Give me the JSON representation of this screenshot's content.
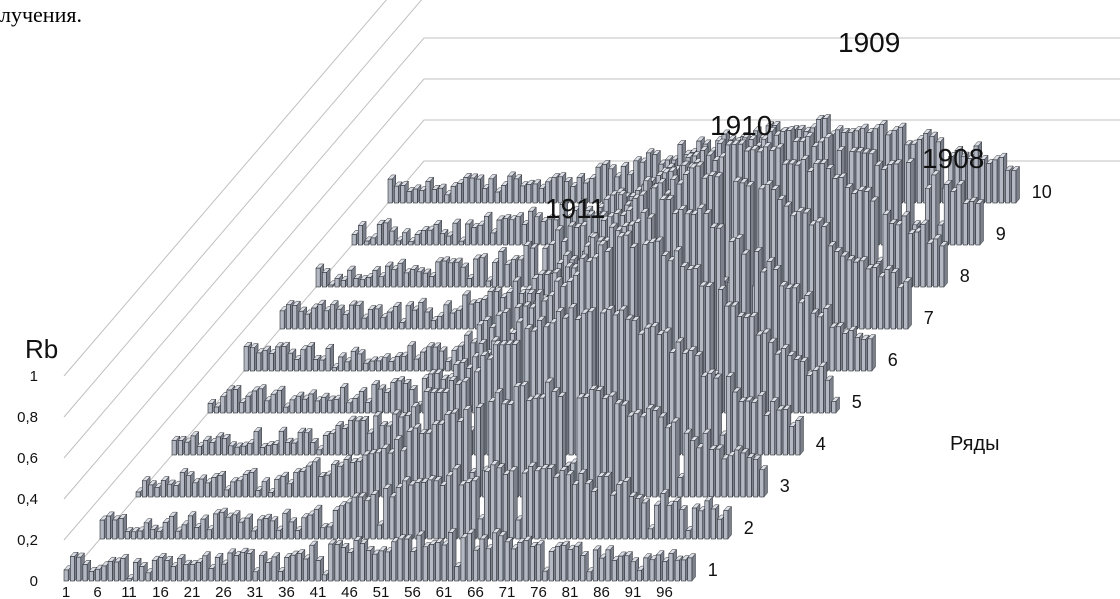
{
  "caption_fragment": "лучения.",
  "chart_data": {
    "type": "bar",
    "subtype": "3d-bar",
    "ylabel": "Rb",
    "depth_label": "Ряды",
    "ylim": [
      0,
      1
    ],
    "y_ticks": [
      "0",
      "0,2",
      "0,4",
      "0,6",
      "0,8",
      "1"
    ],
    "x_ticks": [
      "1",
      "6",
      "11",
      "16",
      "21",
      "26",
      "31",
      "36",
      "41",
      "46",
      "51",
      "56",
      "61",
      "66",
      "71",
      "76",
      "81",
      "86",
      "91",
      "96"
    ],
    "x_count": 100,
    "rows": [
      "1",
      "2",
      "3",
      "4",
      "5",
      "6",
      "7",
      "8",
      "9",
      "10"
    ],
    "annotations": [
      {
        "text": "1909",
        "row": 10,
        "x": 43
      },
      {
        "text": "1910",
        "row": 10,
        "x": 26
      },
      {
        "text": "1908",
        "row": 10,
        "x": 53
      },
      {
        "text": "1911",
        "row": 10,
        "x": 5
      }
    ],
    "grid": true,
    "colors": {
      "bar_front": "#b3b8c2",
      "bar_side": "#7b808b",
      "bar_top": "#dcdfe5",
      "bar_edge": "#2a2d33",
      "grid": "#c0c0c0"
    },
    "series_profiles": [
      {
        "name": "1",
        "peak_x": 65,
        "peak_value": 0.12,
        "width": 30
      },
      {
        "name": "2",
        "peak_x": 65,
        "peak_value": 0.25,
        "width": 28
      },
      {
        "name": "3",
        "peak_x": 66,
        "peak_value": 0.45,
        "width": 26
      },
      {
        "name": "4",
        "peak_x": 66,
        "peak_value": 0.62,
        "width": 24
      },
      {
        "name": "5",
        "peak_x": 67,
        "peak_value": 0.75,
        "width": 22
      },
      {
        "name": "6",
        "peak_x": 67,
        "peak_value": 0.72,
        "width": 22
      },
      {
        "name": "7",
        "peak_x": 68,
        "peak_value": 0.68,
        "width": 24
      },
      {
        "name": "8",
        "peak_x": 68,
        "peak_value": 0.6,
        "width": 26
      },
      {
        "name": "9",
        "peak_x": 69,
        "peak_value": 0.45,
        "width": 28
      },
      {
        "name": "10",
        "peak_x": 69,
        "peak_value": 0.3,
        "width": 30
      }
    ]
  }
}
